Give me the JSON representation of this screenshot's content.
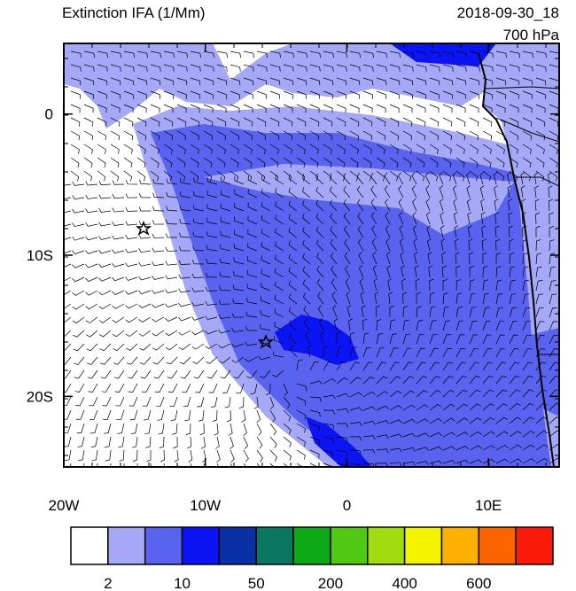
{
  "map": {
    "title": "Extinction IFA (1/Mm)",
    "time": "2018-09-30_18",
    "level": "700 hPa",
    "lon_range": [
      -20,
      15
    ],
    "lat_range": [
      5,
      -25
    ],
    "x_ticks": [
      {
        "value": -20,
        "label": "20W"
      },
      {
        "value": -10,
        "label": "10W"
      },
      {
        "value": 0,
        "label": "0"
      },
      {
        "value": 10,
        "label": "10E"
      }
    ],
    "y_ticks": [
      {
        "value": 0,
        "label": "0"
      },
      {
        "value": -10,
        "label": "10S"
      },
      {
        "value": -20,
        "label": "20S"
      }
    ],
    "colorbar": {
      "colors": [
        "#ffffff",
        "#a4a8f6",
        "#5a62f0",
        "#0a14f4",
        "#0a30a8",
        "#0a7860",
        "#0ca818",
        "#50c814",
        "#a0dc10",
        "#f4f400",
        "#fcb000",
        "#fc6400",
        "#fc1a0a"
      ],
      "labels": [
        2,
        10,
        50,
        200,
        400,
        600
      ]
    }
  }
}
